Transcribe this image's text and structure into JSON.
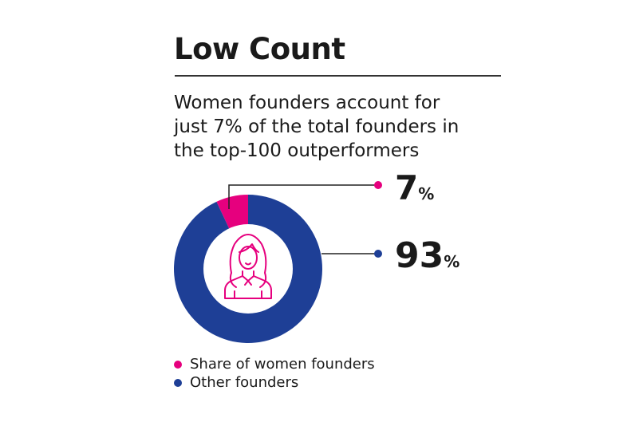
{
  "chart_data": {
    "type": "pie",
    "donut": true,
    "title": "Low Count",
    "subtitle": [
      "Women founders account for",
      "just 7% of the total founders in",
      "the top-100 outperformers"
    ],
    "slices": [
      {
        "name": "Share of women founders",
        "value": 7,
        "label": "7",
        "unit": "%",
        "color": "#e6007e"
      },
      {
        "name": "Other founders",
        "value": 93,
        "label": "93",
        "unit": "%",
        "color": "#1e3f96"
      }
    ],
    "center_icon": "woman-founder-icon",
    "legend_position": "bottom-left"
  }
}
